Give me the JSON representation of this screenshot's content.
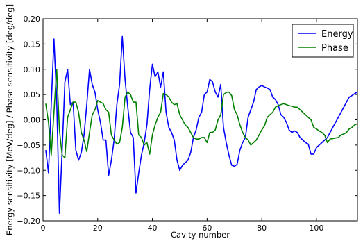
{
  "chart_data": {
    "type": "line",
    "xlabel": "Cavity number",
    "ylabel": "Energy sensitivity [MeV/deg] / Phase sensitivity [deg/deg]",
    "xlim": [
      0,
      115
    ],
    "ylim": [
      -0.2,
      0.2
    ],
    "xticks": [
      0,
      20,
      40,
      60,
      80,
      100
    ],
    "yticks": [
      -0.2,
      -0.15,
      -0.1,
      -0.05,
      0.0,
      0.05,
      0.1,
      0.15,
      0.2
    ],
    "xtick_labels": [
      "0",
      "20",
      "40",
      "60",
      "80",
      "100"
    ],
    "ytick_labels": [
      "−0.20",
      "−0.15",
      "−0.10",
      "−0.05",
      "0.00",
      "0.05",
      "0.10",
      "0.15",
      "0.20"
    ],
    "grid": false,
    "legend_position": "top-right",
    "series": [
      {
        "name": "Energy",
        "color": "#0000ff",
        "x": [
          1,
          2,
          3,
          4,
          5,
          6,
          7,
          8,
          9,
          10,
          11,
          12,
          13,
          14,
          15,
          16,
          17,
          18,
          19,
          20,
          21,
          22,
          23,
          24,
          25,
          26,
          27,
          28,
          29,
          30,
          31,
          32,
          33,
          34,
          35,
          36,
          37,
          38,
          39,
          40,
          41,
          42,
          43,
          44,
          45,
          46,
          47,
          48,
          49,
          50,
          51,
          52,
          53,
          54,
          55,
          56,
          57,
          58,
          59,
          60,
          61,
          62,
          63,
          64,
          65,
          66,
          67,
          68,
          69,
          70,
          71,
          72,
          73,
          74,
          75,
          76,
          77,
          78,
          79,
          80,
          81,
          82,
          83,
          84,
          85,
          86,
          87,
          88,
          89,
          90,
          91,
          92,
          93,
          94,
          95,
          96,
          97,
          98,
          99,
          100,
          101,
          102,
          103,
          104,
          105,
          106,
          107,
          108,
          109,
          110,
          111,
          112,
          113,
          114,
          115
        ],
        "y": [
          -0.06,
          -0.105,
          0.03,
          0.16,
          0.04,
          -0.185,
          -0.06,
          0.075,
          0.1,
          0.03,
          0.035,
          -0.06,
          -0.08,
          -0.065,
          -0.03,
          0.03,
          0.1,
          0.07,
          0.055,
          0.02,
          -0.005,
          -0.04,
          -0.04,
          -0.11,
          -0.08,
          -0.04,
          0.03,
          0.07,
          0.165,
          0.08,
          0.025,
          -0.025,
          -0.035,
          -0.145,
          -0.105,
          -0.07,
          -0.045,
          -0.01,
          0.06,
          0.11,
          0.085,
          0.095,
          0.065,
          0.095,
          0.015,
          -0.015,
          -0.025,
          -0.04,
          -0.08,
          -0.1,
          -0.09,
          -0.085,
          -0.08,
          -0.065,
          -0.035,
          -0.02,
          0.005,
          0.015,
          0.05,
          0.055,
          0.08,
          0.075,
          0.055,
          0.045,
          0.07,
          -0.015,
          -0.045,
          -0.07,
          -0.09,
          -0.092,
          -0.088,
          -0.06,
          -0.045,
          -0.035,
          0.005,
          0.02,
          0.035,
          0.06,
          0.065,
          0.068,
          0.065,
          0.063,
          0.06,
          0.045,
          0.04,
          0.03,
          0.01,
          0.005,
          -0.005,
          -0.02,
          -0.025,
          -0.022,
          -0.025,
          -0.035,
          -0.04,
          -0.045,
          -0.048,
          -0.068,
          -0.068,
          -0.055,
          -0.05,
          -0.045,
          -0.04,
          -0.035,
          -0.025,
          -0.015,
          -0.005,
          0.005,
          0.015,
          0.025,
          0.035,
          0.045,
          0.048,
          0.052,
          0.055
        ]
      },
      {
        "name": "Phase",
        "color": "#008000",
        "x": [
          1,
          2,
          3,
          4,
          5,
          6,
          7,
          8,
          9,
          10,
          11,
          12,
          13,
          14,
          15,
          16,
          17,
          18,
          19,
          20,
          21,
          22,
          23,
          24,
          25,
          26,
          27,
          28,
          29,
          30,
          31,
          32,
          33,
          34,
          35,
          36,
          37,
          38,
          39,
          40,
          41,
          42,
          43,
          44,
          45,
          46,
          47,
          48,
          49,
          50,
          51,
          52,
          53,
          54,
          55,
          56,
          57,
          58,
          59,
          60,
          61,
          62,
          63,
          64,
          65,
          66,
          67,
          68,
          69,
          70,
          71,
          72,
          73,
          74,
          75,
          76,
          77,
          78,
          79,
          80,
          81,
          82,
          83,
          84,
          85,
          86,
          87,
          88,
          89,
          90,
          91,
          92,
          93,
          94,
          95,
          96,
          97,
          98,
          99,
          100,
          101,
          102,
          103,
          104,
          105,
          106,
          107,
          108,
          109,
          110,
          111,
          112,
          113,
          114,
          115
        ],
        "y": [
          0.032,
          -0.005,
          -0.07,
          0.015,
          0.1,
          -0.02,
          -0.07,
          -0.075,
          0.005,
          0.02,
          0.035,
          0.035,
          0.015,
          -0.025,
          -0.04,
          -0.063,
          -0.025,
          0.01,
          0.02,
          0.038,
          0.035,
          0.032,
          0.02,
          0.015,
          -0.03,
          -0.04,
          -0.048,
          -0.045,
          -0.015,
          0.045,
          0.055,
          0.05,
          0.035,
          0.035,
          -0.03,
          -0.035,
          -0.05,
          -0.045,
          -0.068,
          -0.03,
          -0.01,
          0.005,
          0.015,
          0.052,
          0.05,
          0.045,
          0.035,
          0.03,
          0.032,
          0.01,
          0.0,
          -0.01,
          -0.015,
          -0.025,
          -0.035,
          -0.038,
          -0.038,
          -0.035,
          -0.035,
          -0.045,
          -0.025,
          -0.025,
          -0.02,
          0.0,
          0.01,
          0.05,
          0.054,
          0.055,
          0.048,
          0.02,
          0.01,
          -0.01,
          -0.025,
          -0.035,
          -0.04,
          -0.05,
          -0.045,
          -0.04,
          -0.03,
          -0.02,
          -0.012,
          0.005,
          0.01,
          0.015,
          0.025,
          0.028,
          0.03,
          0.032,
          0.03,
          0.028,
          0.027,
          0.025,
          0.025,
          0.02,
          0.015,
          0.01,
          0.005,
          0.0,
          -0.015,
          -0.018,
          -0.022,
          -0.025,
          -0.03,
          -0.045,
          -0.038,
          -0.037,
          -0.036,
          -0.035,
          -0.03,
          -0.028,
          -0.025,
          -0.018,
          -0.015,
          -0.01,
          -0.008
        ]
      }
    ]
  }
}
